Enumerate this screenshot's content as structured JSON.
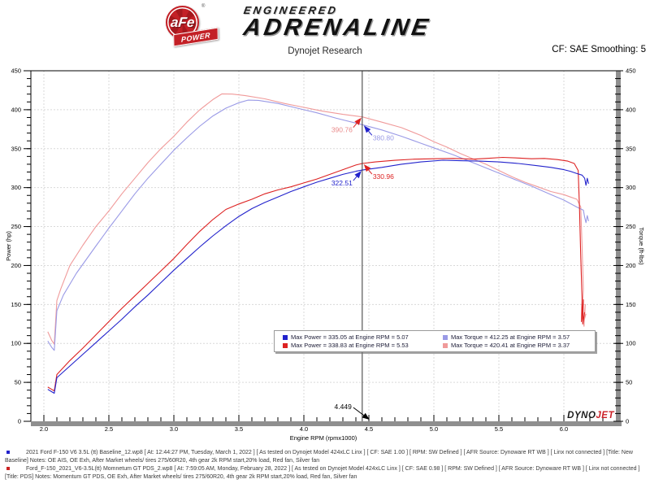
{
  "header": {
    "brand": {
      "circle_text": "aFe",
      "reg": "®",
      "banner_text": "POWER",
      "line1": "ENGINEERED",
      "line2": "ADRENALINE"
    },
    "title": "Dynojet Research",
    "cf_smoothing": "CF: SAE Smoothing: 5"
  },
  "chart_data": {
    "type": "line",
    "xlabel": "Engine RPM (rpmx1000)",
    "ylabel_left": "Power (hp)",
    "ylabel_right": "Torque (ft-lbs)",
    "xlim": [
      1.9,
      6.4
    ],
    "ylim": [
      0,
      450
    ],
    "x_ticks": [
      2.0,
      2.5,
      3.0,
      3.5,
      4.0,
      4.5,
      5.0,
      5.5,
      6.0
    ],
    "y_ticks": [
      0,
      50,
      100,
      150,
      200,
      250,
      300,
      350,
      400,
      450
    ],
    "x_minor_step": 0.1,
    "y_minor_step": 10,
    "grid": true,
    "grid_color": "#d9d9d9",
    "axis_bar_color": "#8f8f8f",
    "cursor": {
      "rpm": 4.449,
      "label": "4.449"
    },
    "series": [
      {
        "name": "torque-modified",
        "color": "#f09a9a",
        "axis": "right",
        "points": [
          [
            2.03,
            115
          ],
          [
            2.06,
            104
          ],
          [
            2.08,
            99
          ],
          [
            2.1,
            155
          ],
          [
            2.13,
            170
          ],
          [
            2.2,
            200
          ],
          [
            2.3,
            226
          ],
          [
            2.4,
            250
          ],
          [
            2.5,
            270
          ],
          [
            2.6,
            292
          ],
          [
            2.7,
            312
          ],
          [
            2.8,
            332
          ],
          [
            2.9,
            350
          ],
          [
            3.0,
            366
          ],
          [
            3.1,
            384
          ],
          [
            3.2,
            400
          ],
          [
            3.3,
            413
          ],
          [
            3.37,
            420.4
          ],
          [
            3.45,
            420
          ],
          [
            3.55,
            418
          ],
          [
            3.7,
            414
          ],
          [
            3.85,
            408
          ],
          [
            4.0,
            403
          ],
          [
            4.15,
            398
          ],
          [
            4.3,
            394
          ],
          [
            4.449,
            390.8
          ],
          [
            4.6,
            384
          ],
          [
            4.75,
            377
          ],
          [
            4.9,
            367
          ],
          [
            5.0,
            359
          ],
          [
            5.1,
            352
          ],
          [
            5.2,
            344
          ],
          [
            5.3,
            337
          ],
          [
            5.4,
            330
          ],
          [
            5.5,
            322
          ],
          [
            5.6,
            314
          ],
          [
            5.7,
            307
          ],
          [
            5.8,
            301
          ],
          [
            5.9,
            295
          ],
          [
            6.0,
            291
          ],
          [
            6.05,
            288
          ],
          [
            6.1,
            285
          ],
          [
            6.13,
            275
          ],
          [
            6.14,
            225
          ],
          [
            6.15,
            170
          ],
          [
            6.14,
            135
          ],
          [
            6.155,
            122
          ],
          [
            6.165,
            150
          ],
          [
            6.15,
            126
          ],
          [
            6.17,
            138
          ]
        ]
      },
      {
        "name": "torque-baseline",
        "color": "#9a9ae6",
        "axis": "right",
        "points": [
          [
            2.03,
            103
          ],
          [
            2.06,
            95
          ],
          [
            2.08,
            91
          ],
          [
            2.1,
            142
          ],
          [
            2.15,
            162
          ],
          [
            2.25,
            190
          ],
          [
            2.4,
            225
          ],
          [
            2.5,
            248
          ],
          [
            2.6,
            270
          ],
          [
            2.7,
            292
          ],
          [
            2.8,
            312
          ],
          [
            2.9,
            330
          ],
          [
            3.0,
            348
          ],
          [
            3.1,
            364
          ],
          [
            3.2,
            379
          ],
          [
            3.3,
            392
          ],
          [
            3.4,
            402
          ],
          [
            3.5,
            409
          ],
          [
            3.57,
            412.3
          ],
          [
            3.65,
            412
          ],
          [
            3.8,
            408
          ],
          [
            3.95,
            402
          ],
          [
            4.1,
            396
          ],
          [
            4.25,
            389
          ],
          [
            4.449,
            380.8
          ],
          [
            4.6,
            374
          ],
          [
            4.75,
            366
          ],
          [
            4.9,
            357
          ],
          [
            5.0,
            351
          ],
          [
            5.15,
            342
          ],
          [
            5.3,
            332
          ],
          [
            5.45,
            322
          ],
          [
            5.6,
            312
          ],
          [
            5.75,
            302
          ],
          [
            5.9,
            291
          ],
          [
            6.0,
            284
          ],
          [
            6.1,
            275
          ],
          [
            6.15,
            271
          ],
          [
            6.16,
            262
          ],
          [
            6.17,
            255
          ],
          [
            6.18,
            264
          ],
          [
            6.19,
            257
          ]
        ]
      },
      {
        "name": "power-modified",
        "color": "#dd2222",
        "axis": "left",
        "points": [
          [
            2.03,
            44
          ],
          [
            2.06,
            41
          ],
          [
            2.08,
            39
          ],
          [
            2.1,
            60
          ],
          [
            2.2,
            78
          ],
          [
            2.3,
            94
          ],
          [
            2.4,
            111
          ],
          [
            2.5,
            128
          ],
          [
            2.6,
            145
          ],
          [
            2.7,
            161
          ],
          [
            2.8,
            177
          ],
          [
            2.9,
            193
          ],
          [
            3.0,
            209
          ],
          [
            3.1,
            227
          ],
          [
            3.2,
            244
          ],
          [
            3.3,
            259
          ],
          [
            3.4,
            272
          ],
          [
            3.5,
            279
          ],
          [
            3.6,
            285
          ],
          [
            3.7,
            292
          ],
          [
            3.8,
            297
          ],
          [
            3.9,
            301
          ],
          [
            4.0,
            306
          ],
          [
            4.1,
            311
          ],
          [
            4.2,
            317
          ],
          [
            4.3,
            323
          ],
          [
            4.4,
            329
          ],
          [
            4.449,
            331
          ],
          [
            4.55,
            333
          ],
          [
            4.7,
            335
          ],
          [
            4.85,
            336.5
          ],
          [
            5.0,
            337
          ],
          [
            5.15,
            337.5
          ],
          [
            5.3,
            336.5
          ],
          [
            5.4,
            337.5
          ],
          [
            5.53,
            338.8
          ],
          [
            5.65,
            338
          ],
          [
            5.75,
            337
          ],
          [
            5.85,
            337.5
          ],
          [
            5.95,
            336
          ],
          [
            6.03,
            334
          ],
          [
            6.08,
            331
          ],
          [
            6.11,
            322
          ],
          [
            6.12,
            275
          ],
          [
            6.13,
            210
          ],
          [
            6.14,
            158
          ],
          [
            6.135,
            128
          ],
          [
            6.15,
            156
          ],
          [
            6.145,
            125
          ],
          [
            6.16,
            140
          ]
        ]
      },
      {
        "name": "power-baseline",
        "color": "#2222cc",
        "axis": "left",
        "points": [
          [
            2.03,
            41
          ],
          [
            2.06,
            38
          ],
          [
            2.08,
            36
          ],
          [
            2.1,
            56
          ],
          [
            2.2,
            71
          ],
          [
            2.3,
            86
          ],
          [
            2.4,
            101
          ],
          [
            2.5,
            116
          ],
          [
            2.6,
            131
          ],
          [
            2.7,
            147
          ],
          [
            2.8,
            162
          ],
          [
            2.9,
            178
          ],
          [
            3.0,
            194
          ],
          [
            3.1,
            209
          ],
          [
            3.2,
            224
          ],
          [
            3.3,
            238
          ],
          [
            3.4,
            251
          ],
          [
            3.5,
            263
          ],
          [
            3.6,
            273
          ],
          [
            3.7,
            281
          ],
          [
            3.8,
            288
          ],
          [
            3.9,
            295
          ],
          [
            4.0,
            301
          ],
          [
            4.1,
            307
          ],
          [
            4.2,
            312
          ],
          [
            4.3,
            317
          ],
          [
            4.4,
            321
          ],
          [
            4.449,
            322.5
          ],
          [
            4.6,
            326
          ],
          [
            4.75,
            330
          ],
          [
            4.9,
            333
          ],
          [
            5.07,
            335.1
          ],
          [
            5.2,
            334.5
          ],
          [
            5.35,
            334
          ],
          [
            5.5,
            333
          ],
          [
            5.65,
            331
          ],
          [
            5.8,
            328
          ],
          [
            5.9,
            326
          ],
          [
            6.0,
            323
          ],
          [
            6.05,
            321
          ],
          [
            6.1,
            318
          ],
          [
            6.14,
            316
          ],
          [
            6.16,
            312
          ],
          [
            6.17,
            303
          ],
          [
            6.18,
            312
          ],
          [
            6.19,
            305
          ]
        ]
      }
    ],
    "annotations": [
      {
        "label": "390.76",
        "value": 390.76,
        "side": "left",
        "text_color": "#e98a8a",
        "arrow_color": "#dd2222"
      },
      {
        "label": "380.80",
        "value": 380.8,
        "side": "right",
        "text_color": "#9a9ae6",
        "arrow_color": "#2222cc"
      },
      {
        "label": "330.96",
        "value": 330.96,
        "side": "right",
        "text_color": "#dd2222",
        "arrow_color": "#dd2222"
      },
      {
        "label": "322.51",
        "value": 322.51,
        "side": "left",
        "text_color": "#2222cc",
        "arrow_color": "#2222cc"
      }
    ]
  },
  "legend": {
    "entries": [
      {
        "color": "#2222cc",
        "label": "Max Power = 335.05 at Engine RPM = 5.07"
      },
      {
        "color": "#9a9ae6",
        "label": "Max Torque = 412.25 at Engine RPM = 3.57"
      },
      {
        "color": "#dd2222",
        "label": "Max Power = 338.83 at Engine RPM = 5.53"
      },
      {
        "color": "#f09a9a",
        "label": "Max Torque = 420.41 at Engine RPM = 3.37"
      }
    ]
  },
  "watermark": {
    "dyno": "DYNO",
    "jet": "JET",
    "dyno_color": "#1a1a1a",
    "jet_color": "#cc2027"
  },
  "footer": {
    "runs": [
      {
        "bullet_color": "#2222cc",
        "text": "2021 Ford F-150 V6 3.5L (tt) Baseline_12.wp8 [ At: 12:44:27 PM, Tuesday, March 1, 2022 ] [ As tested on Dynojet Model 424xLC Linx ] [ CF: SAE 1.00 ] [ RPM: SW Defined ] [ AFR Source: Dynoware RT WB ] [ Linx not connected ] [Title: New Baseline]  Notes: OE AIS, OE Exh, After Market wheels/ tires 275/60R20, 4th gear 2k RPM start,20% load, Red fan, Silver fan"
      },
      {
        "bullet_color": "#cc2222",
        "text": "Ford_F-150_2021_V6-3.5L(tt) Momnetum GT PDS_2.wp8 [ At: 7:59:05 AM, Monday, February 28, 2022 ] [ As tested on Dynojet Model 424xLC Linx ] [ CF: SAE 0.98 ] [ RPM: SW Defined ] [ AFR Source: Dynoware RT WB ] [ Linx not connected ] [Title: PDS]  Notes: Momentum GT  PDS, OE Exh, After Market wheels/ tires 275/60R20, 4th gear 2k RPM start,20% load, Red fan, Silver fan"
      }
    ]
  }
}
